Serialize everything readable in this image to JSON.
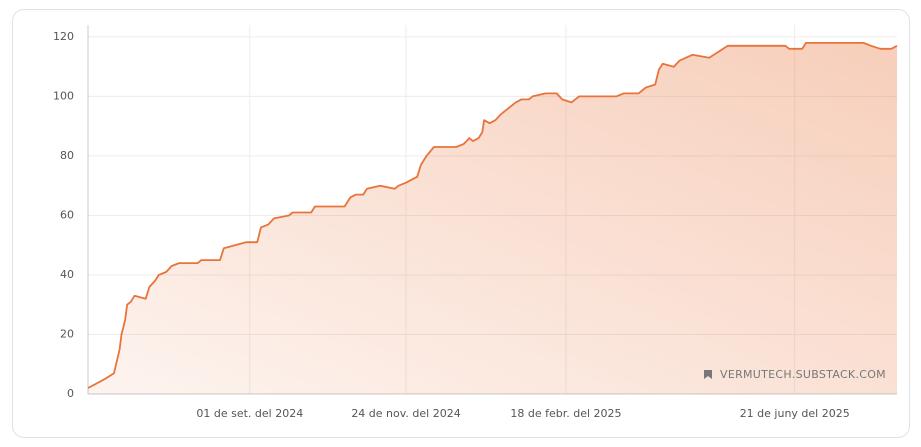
{
  "chart_data": {
    "type": "line",
    "x": [
      "2024-06-06",
      "2024-06-09",
      "2024-06-15",
      "2024-06-20",
      "2024-06-23",
      "2024-06-24",
      "2024-06-26",
      "2024-06-27",
      "2024-06-29",
      "2024-07-01",
      "2024-07-07",
      "2024-07-09",
      "2024-07-12",
      "2024-07-14",
      "2024-07-18",
      "2024-07-21",
      "2024-07-25",
      "2024-08-04",
      "2024-08-06",
      "2024-08-16",
      "2024-08-18",
      "2024-08-24",
      "2024-08-30",
      "2024-09-05",
      "2024-09-07",
      "2024-09-11",
      "2024-09-14",
      "2024-09-22",
      "2024-09-24",
      "2024-10-04",
      "2024-10-06",
      "2024-10-22",
      "2024-10-25",
      "2024-10-28",
      "2024-11-01",
      "2024-11-03",
      "2024-11-10",
      "2024-11-18",
      "2024-11-20",
      "2024-11-24",
      "2024-11-27",
      "2024-11-30",
      "2024-12-02",
      "2024-12-05",
      "2024-12-09",
      "2024-12-21",
      "2024-12-25",
      "2024-12-28",
      "2024-12-30",
      "2025-01-02",
      "2025-01-04",
      "2025-01-05",
      "2025-01-08",
      "2025-01-11",
      "2025-01-14",
      "2025-01-18",
      "2025-01-22",
      "2025-01-25",
      "2025-01-29",
      "2025-01-31",
      "2025-02-07",
      "2025-02-13",
      "2025-02-16",
      "2025-02-21",
      "2025-02-25",
      "2025-03-17",
      "2025-03-21",
      "2025-03-29",
      "2025-04-02",
      "2025-04-07",
      "2025-04-09",
      "2025-04-11",
      "2025-04-17",
      "2025-04-20",
      "2025-04-27",
      "2025-05-06",
      "2025-05-11",
      "2025-05-16",
      "2025-05-21",
      "2025-06-16",
      "2025-06-18",
      "2025-06-25",
      "2025-06-27",
      "2025-07-28",
      "2025-08-01",
      "2025-08-06",
      "2025-08-12",
      "2025-08-15"
    ],
    "values": [
      2,
      3,
      5,
      7,
      15,
      20,
      25,
      30,
      31,
      33,
      32,
      36,
      38,
      40,
      41,
      43,
      44,
      44,
      45,
      45,
      49,
      50,
      51,
      51,
      56,
      57,
      59,
      60,
      61,
      61,
      63,
      63,
      66,
      67,
      67,
      69,
      70,
      69,
      70,
      71,
      72,
      73,
      77,
      80,
      83,
      83,
      84,
      86,
      85,
      86,
      88,
      92,
      91,
      92,
      94,
      96,
      98,
      99,
      99,
      100,
      101,
      101,
      99,
      98,
      100,
      100,
      101,
      101,
      103,
      104,
      109,
      111,
      110,
      112,
      114,
      113,
      115,
      117,
      117,
      117,
      116,
      116,
      118,
      118,
      117,
      116,
      116,
      117
    ],
    "color": "#e8743b",
    "xlim": [
      "2024-06-06",
      "2025-08-15"
    ],
    "xticks": [
      {
        "value": "2024-09-01",
        "label": "01 de set. del 2024"
      },
      {
        "value": "2024-11-24",
        "label": "24 de nov. del 2024"
      },
      {
        "value": "2025-02-18",
        "label": "18 de febr. del 2025"
      },
      {
        "value": "2025-06-21",
        "label": "21 de juny del 2025"
      }
    ],
    "ylim": [
      0,
      124
    ],
    "yticks": [
      0,
      20,
      40,
      60,
      80,
      100,
      120
    ],
    "grid": true,
    "watermark": "VERMUTECH.SUBSTACK.COM"
  }
}
